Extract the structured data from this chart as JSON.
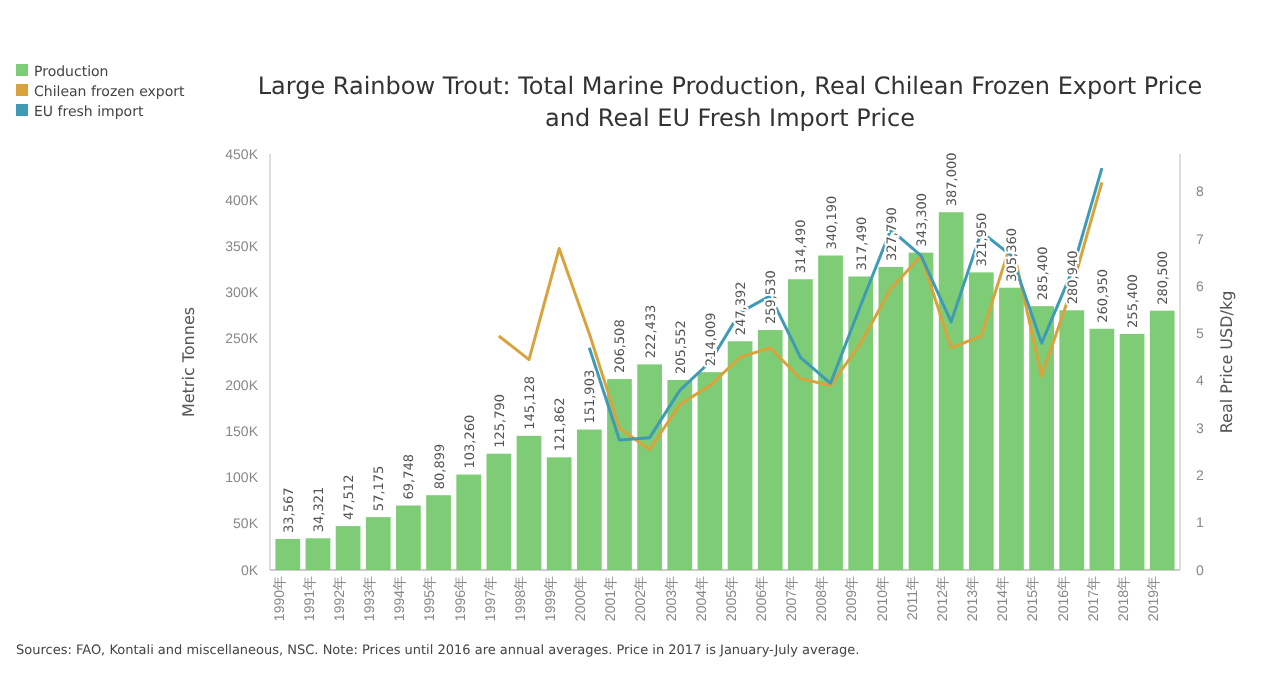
{
  "chart_data": {
    "type": "bar",
    "title": "Large Rainbow Trout: Total Marine Production, Real Chilean Frozen Export Price and Real EU Fresh Import Price",
    "categories": [
      "1990年",
      "1991年",
      "1992年",
      "1993年",
      "1994年",
      "1995年",
      "1996年",
      "1997年",
      "1998年",
      "1999年",
      "2000年",
      "2001年",
      "2002年",
      "2003年",
      "2004年",
      "2005年",
      "2006年",
      "2007年",
      "2008年",
      "2009年",
      "2010年",
      "2011年",
      "2012年",
      "2013年",
      "2014年",
      "2015年",
      "2016年",
      "2017年",
      "2018年",
      "2019年"
    ],
    "series": [
      {
        "name": "Production",
        "color": "#7fcc76",
        "values": [
          33567,
          34321,
          47512,
          57175,
          69748,
          80899,
          103260,
          125790,
          145128,
          121862,
          151903,
          206508,
          222433,
          205552,
          214009,
          247392,
          259530,
          314490,
          340190,
          317490,
          327790,
          343300,
          387000,
          321950,
          305360,
          285400,
          280940,
          260950,
          255400,
          280500
        ],
        "value_labels": [
          "33,567",
          "34,321",
          "47,512",
          "57,175",
          "69,748",
          "80,899",
          "103,260",
          "125,790",
          "145,128",
          "121,862",
          "151,903",
          "206,508",
          "222,433",
          "205,552",
          "214,009",
          "247,392",
          "259,530",
          "314,490",
          "340,190",
          "317,490",
          "327,790",
          "343,300",
          "387,000",
          "321,950",
          "305,360",
          "285,400",
          "280,940",
          "260,950",
          "255,400",
          "280,500"
        ]
      },
      {
        "name": "Chilean frozen export",
        "type": "line",
        "axis": "y2",
        "color": "#d9a33c",
        "values": [
          null,
          null,
          null,
          null,
          null,
          null,
          null,
          4.95,
          4.45,
          6.8,
          5.0,
          3.0,
          2.55,
          3.5,
          3.9,
          4.5,
          4.7,
          4.05,
          3.9,
          4.8,
          5.95,
          6.65,
          4.7,
          4.95,
          6.95,
          4.1,
          5.95,
          8.2,
          null,
          null
        ]
      },
      {
        "name": "EU fresh import",
        "type": "line",
        "axis": "y2",
        "color": "#3f9bb5",
        "values": [
          null,
          null,
          null,
          null,
          null,
          null,
          null,
          null,
          null,
          null,
          4.7,
          2.75,
          2.8,
          3.8,
          4.4,
          5.45,
          5.8,
          4.5,
          3.95,
          5.6,
          7.2,
          6.65,
          5.25,
          7.15,
          6.65,
          4.8,
          6.3,
          8.5,
          null,
          null
        ]
      }
    ],
    "ylim": [
      0,
      450000
    ],
    "yticks": [
      {
        "value": 0,
        "label": "0K"
      },
      {
        "value": 50000,
        "label": "50K"
      },
      {
        "value": 100000,
        "label": "100K"
      },
      {
        "value": 150000,
        "label": "150K"
      },
      {
        "value": 200000,
        "label": "200K"
      },
      {
        "value": 250000,
        "label": "250K"
      },
      {
        "value": 300000,
        "label": "300K"
      },
      {
        "value": 350000,
        "label": "350K"
      },
      {
        "value": 400000,
        "label": "400K"
      },
      {
        "value": 450000,
        "label": "450K"
      }
    ],
    "y2lim": [
      0,
      8.8
    ],
    "y2ticks": [
      0,
      1,
      2,
      3,
      4,
      5,
      6,
      7,
      8
    ],
    "ylabel": "Metric Tonnes",
    "y2label": "Real Price USD/kg",
    "legend": "top left",
    "annotations": [
      "Sources: FAO, Kontali and miscellaneous, NSC. Note: Prices until 2016 are annual averages. Price in 2017 is January-July average."
    ]
  }
}
